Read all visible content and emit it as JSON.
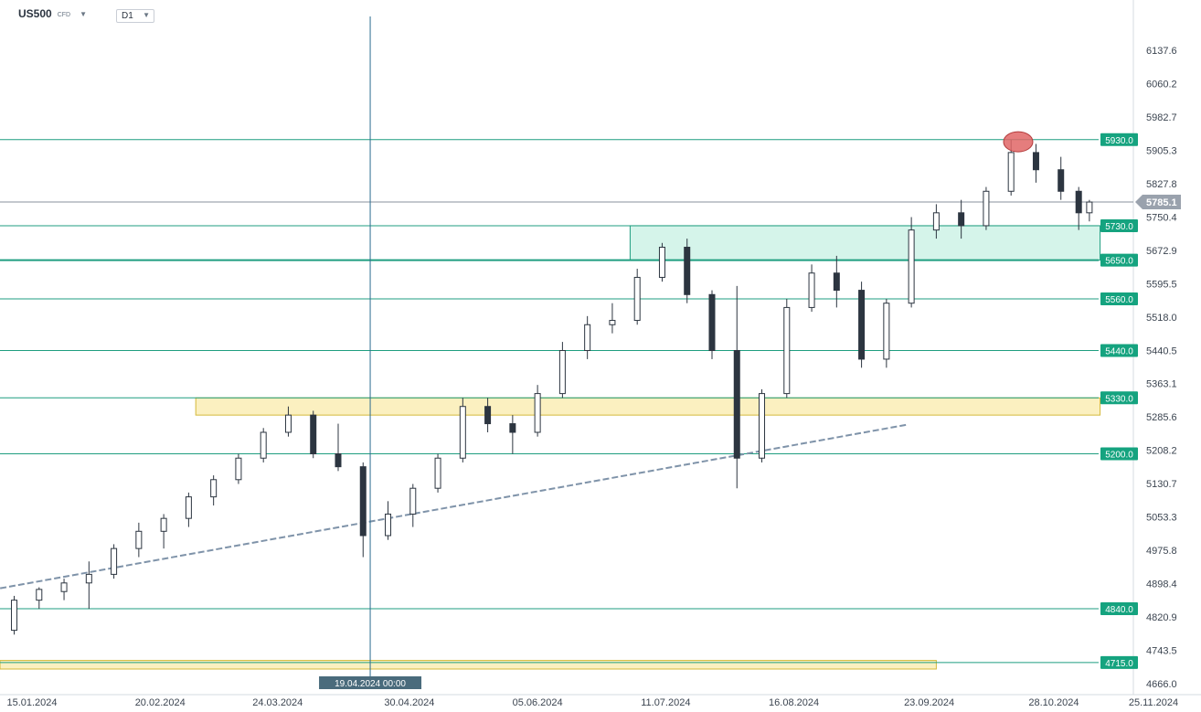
{
  "header": {
    "symbol": "US500",
    "symbol_type": "CFD",
    "timeframe": "D1"
  },
  "colors": {
    "level_line": "#1f9e80",
    "level_label_bg": "#15a37f",
    "support_zone_fill": "rgba(88,212,170,0.25)",
    "resistance_zone_fill": "rgba(248,228,140,0.55)",
    "zone_border_yellow": "#d4b93a",
    "trendline": "#7f93a9",
    "candle_up": "#ffffff",
    "candle_down": "#2c3540",
    "price_badge_bg": "#9aa2ad",
    "marker": "#e06666"
  },
  "crosshair": {
    "date_label": "19.04.2024 00:00"
  },
  "chart_data": {
    "type": "candlestick",
    "title": "",
    "y_axis": {
      "min": 4666.0,
      "max": 6137.6,
      "ticks": [
        "6137.6",
        "6060.2",
        "5982.7",
        "5905.3",
        "5827.8",
        "5750.4",
        "5672.9",
        "5595.5",
        "5518.0",
        "5440.5",
        "5363.1",
        "5285.6",
        "5208.2",
        "5130.7",
        "5053.3",
        "4975.8",
        "4898.4",
        "4820.9",
        "4743.5",
        "4666.0"
      ]
    },
    "x_axis": {
      "ticks": [
        "15.01.2024",
        "20.02.2024",
        "24.03.2024",
        "30.04.2024",
        "05.06.2024",
        "11.07.2024",
        "16.08.2024",
        "23.09.2024",
        "28.10.2024",
        "25.11.2024"
      ]
    },
    "current_price": "5785.1",
    "levels": [
      "5930.0",
      "5730.0",
      "5650.0",
      "5560.0",
      "5440.0",
      "5330.0",
      "5200.0",
      "4840.0",
      "4715.0"
    ],
    "zones": [
      {
        "name": "support",
        "from": "5650.0",
        "to": "5730.0",
        "start": "2024-07-01",
        "end": "2024-11-10"
      },
      {
        "name": "resistance",
        "from": "5290.0",
        "to": "5330.0",
        "start": "2024-03-01",
        "end": "2024-11-10"
      },
      {
        "name": "bottom",
        "from": "4700.0",
        "to": "4720.0",
        "start": "2024-01-01",
        "end": "2024-09-25"
      }
    ],
    "trendline": {
      "start_date": "2024-01-01",
      "start_price": 4880,
      "end_date": "2024-09-17",
      "end_price": 5268
    },
    "crosshair_date": "2024-04-19",
    "peak_marker": {
      "date": "2024-10-18",
      "price": 5925
    },
    "ohlc_approx": [
      {
        "date": "2024-01-02",
        "o": 4790,
        "h": 4800,
        "l": 4770,
        "c": 4780
      },
      {
        "date": "2024-01-10",
        "o": 4790,
        "h": 4870,
        "l": 4780,
        "c": 4860
      },
      {
        "date": "2024-01-17",
        "o": 4860,
        "h": 4890,
        "l": 4840,
        "c": 4885
      },
      {
        "date": "2024-01-24",
        "o": 4880,
        "h": 4910,
        "l": 4860,
        "c": 4900
      },
      {
        "date": "2024-01-31",
        "o": 4900,
        "h": 4950,
        "l": 4840,
        "c": 4920
      },
      {
        "date": "2024-02-07",
        "o": 4920,
        "h": 4990,
        "l": 4910,
        "c": 4980
      },
      {
        "date": "2024-02-14",
        "o": 4980,
        "h": 5040,
        "l": 4960,
        "c": 5020
      },
      {
        "date": "2024-02-21",
        "o": 5020,
        "h": 5060,
        "l": 4980,
        "c": 5050
      },
      {
        "date": "2024-02-28",
        "o": 5050,
        "h": 5110,
        "l": 5030,
        "c": 5100
      },
      {
        "date": "2024-03-06",
        "o": 5100,
        "h": 5150,
        "l": 5080,
        "c": 5140
      },
      {
        "date": "2024-03-13",
        "o": 5140,
        "h": 5200,
        "l": 5130,
        "c": 5190
      },
      {
        "date": "2024-03-20",
        "o": 5190,
        "h": 5260,
        "l": 5180,
        "c": 5250
      },
      {
        "date": "2024-03-27",
        "o": 5250,
        "h": 5310,
        "l": 5240,
        "c": 5290
      },
      {
        "date": "2024-04-03",
        "o": 5290,
        "h": 5300,
        "l": 5190,
        "c": 5200
      },
      {
        "date": "2024-04-10",
        "o": 5200,
        "h": 5270,
        "l": 5160,
        "c": 5170
      },
      {
        "date": "2024-04-17",
        "o": 5170,
        "h": 5180,
        "l": 4960,
        "c": 5010
      },
      {
        "date": "2024-04-24",
        "o": 5010,
        "h": 5090,
        "l": 5000,
        "c": 5060
      },
      {
        "date": "2024-05-01",
        "o": 5060,
        "h": 5130,
        "l": 5030,
        "c": 5120
      },
      {
        "date": "2024-05-08",
        "o": 5120,
        "h": 5200,
        "l": 5110,
        "c": 5190
      },
      {
        "date": "2024-05-15",
        "o": 5190,
        "h": 5330,
        "l": 5180,
        "c": 5310
      },
      {
        "date": "2024-05-22",
        "o": 5310,
        "h": 5330,
        "l": 5250,
        "c": 5270
      },
      {
        "date": "2024-05-29",
        "o": 5270,
        "h": 5290,
        "l": 5200,
        "c": 5250
      },
      {
        "date": "2024-06-05",
        "o": 5250,
        "h": 5360,
        "l": 5240,
        "c": 5340
      },
      {
        "date": "2024-06-12",
        "o": 5340,
        "h": 5460,
        "l": 5330,
        "c": 5440
      },
      {
        "date": "2024-06-19",
        "o": 5440,
        "h": 5520,
        "l": 5420,
        "c": 5500
      },
      {
        "date": "2024-06-26",
        "o": 5500,
        "h": 5550,
        "l": 5480,
        "c": 5510
      },
      {
        "date": "2024-07-03",
        "o": 5510,
        "h": 5630,
        "l": 5500,
        "c": 5610
      },
      {
        "date": "2024-07-10",
        "o": 5610,
        "h": 5690,
        "l": 5600,
        "c": 5680
      },
      {
        "date": "2024-07-17",
        "o": 5680,
        "h": 5700,
        "l": 5550,
        "c": 5570
      },
      {
        "date": "2024-07-24",
        "o": 5570,
        "h": 5580,
        "l": 5420,
        "c": 5440
      },
      {
        "date": "2024-07-31",
        "o": 5440,
        "h": 5590,
        "l": 5120,
        "c": 5190
      },
      {
        "date": "2024-08-07",
        "o": 5190,
        "h": 5350,
        "l": 5180,
        "c": 5340
      },
      {
        "date": "2024-08-14",
        "o": 5340,
        "h": 5560,
        "l": 5330,
        "c": 5540
      },
      {
        "date": "2024-08-21",
        "o": 5540,
        "h": 5640,
        "l": 5530,
        "c": 5620
      },
      {
        "date": "2024-08-28",
        "o": 5620,
        "h": 5660,
        "l": 5540,
        "c": 5580
      },
      {
        "date": "2024-09-04",
        "o": 5580,
        "h": 5600,
        "l": 5400,
        "c": 5420
      },
      {
        "date": "2024-09-11",
        "o": 5420,
        "h": 5560,
        "l": 5400,
        "c": 5550
      },
      {
        "date": "2024-09-18",
        "o": 5550,
        "h": 5750,
        "l": 5540,
        "c": 5720
      },
      {
        "date": "2024-09-25",
        "o": 5720,
        "h": 5780,
        "l": 5700,
        "c": 5760
      },
      {
        "date": "2024-10-02",
        "o": 5760,
        "h": 5790,
        "l": 5700,
        "c": 5730
      },
      {
        "date": "2024-10-09",
        "o": 5730,
        "h": 5820,
        "l": 5720,
        "c": 5810
      },
      {
        "date": "2024-10-16",
        "o": 5810,
        "h": 5930,
        "l": 5800,
        "c": 5900
      },
      {
        "date": "2024-10-23",
        "o": 5900,
        "h": 5920,
        "l": 5830,
        "c": 5860
      },
      {
        "date": "2024-10-30",
        "o": 5860,
        "h": 5890,
        "l": 5790,
        "c": 5810
      },
      {
        "date": "2024-11-04",
        "o": 5810,
        "h": 5820,
        "l": 5720,
        "c": 5760
      },
      {
        "date": "2024-11-07",
        "o": 5760,
        "h": 5790,
        "l": 5740,
        "c": 5785
      }
    ]
  }
}
